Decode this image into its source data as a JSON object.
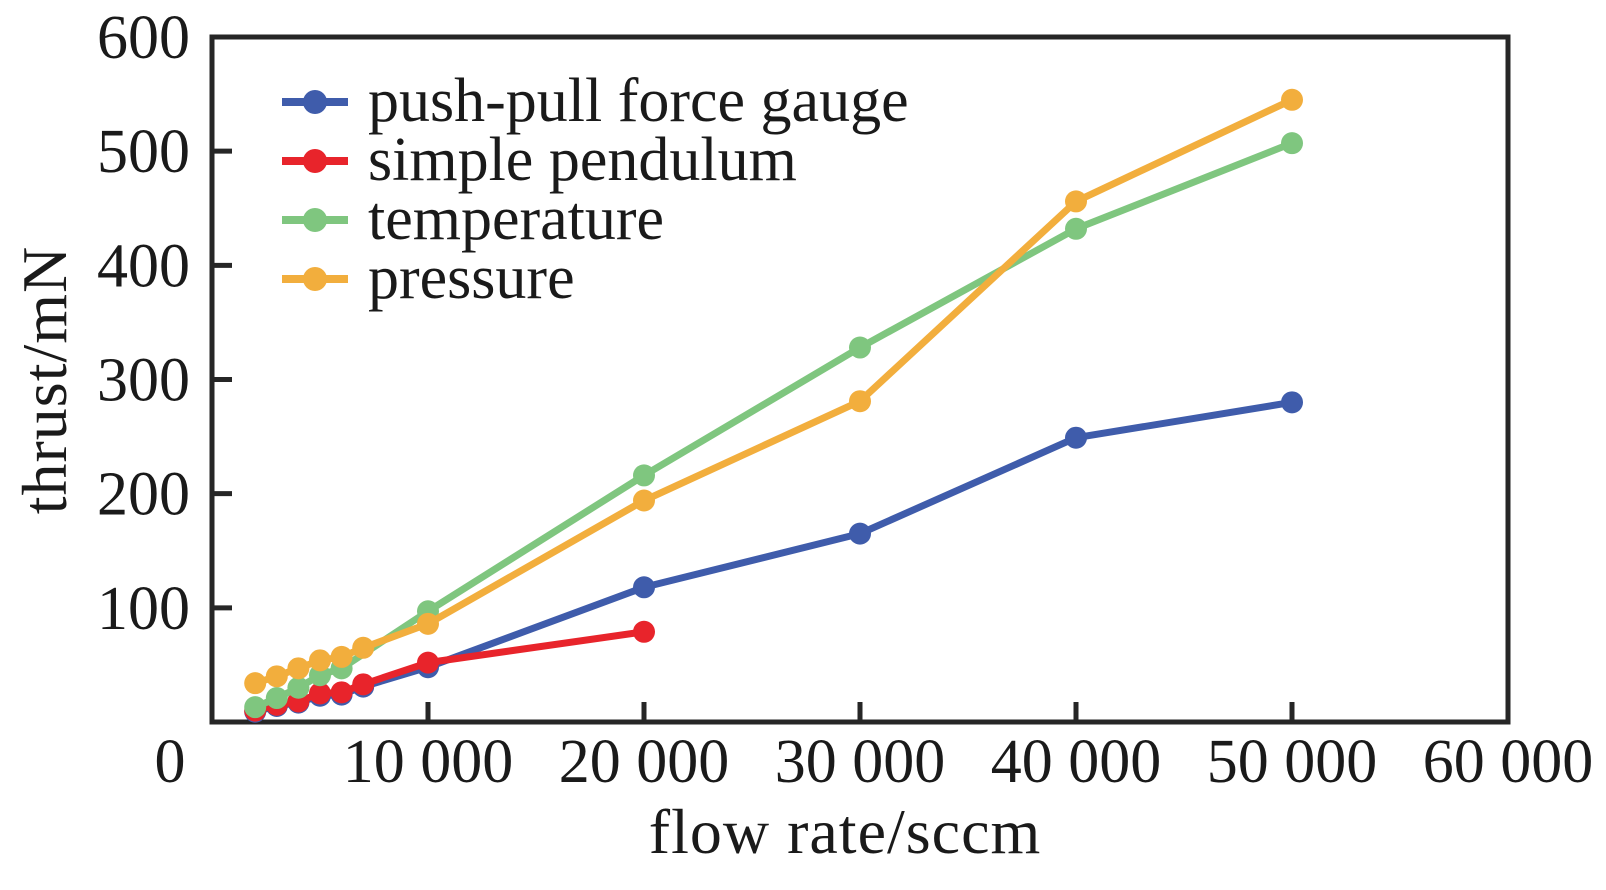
{
  "figure": {
    "background": "#ffffff",
    "axis_color": "#262626",
    "text_color": "#1a1a1a"
  },
  "chart_data": {
    "type": "line",
    "title": "",
    "xlabel": "flow rate/sccm",
    "ylabel": "thrust/mN",
    "xlim": [
      0,
      60000
    ],
    "ylim": [
      0,
      600
    ],
    "grid": false,
    "legend_position": "top-left-inside",
    "xticks": {
      "values": [
        0,
        10000,
        20000,
        30000,
        40000,
        50000,
        60000
      ],
      "labels": [
        "0",
        "10 000",
        "20 000",
        "30 000",
        "40 000",
        "50 000",
        "60 000"
      ]
    },
    "yticks": {
      "values": [
        100,
        200,
        300,
        400,
        500,
        600
      ],
      "labels": [
        "100",
        "200",
        "300",
        "400",
        "500",
        "600"
      ]
    },
    "series": [
      {
        "name": "push-pull force gauge",
        "color": "#3f5cab",
        "x": [
          2000,
          3000,
          4000,
          5000,
          6000,
          7000,
          10000,
          20000,
          30000,
          40000,
          50000
        ],
        "y": [
          9,
          14,
          17,
          23,
          24,
          31,
          48,
          118,
          165,
          249,
          280
        ]
      },
      {
        "name": "simple pendulum",
        "color": "#e8242b",
        "x": [
          2000,
          3000,
          4000,
          5000,
          6000,
          7000,
          10000,
          20000
        ],
        "y": [
          10,
          15,
          18,
          25,
          26,
          33,
          52,
          79
        ]
      },
      {
        "name": "temperature",
        "color": "#7fc67f",
        "x": [
          2000,
          3000,
          4000,
          5000,
          6000,
          10000,
          20000,
          30000,
          40000,
          50000
        ],
        "y": [
          13,
          21,
          30,
          41,
          47,
          97,
          216,
          328,
          432,
          507
        ]
      },
      {
        "name": "pressure",
        "color": "#f2ae3d",
        "x": [
          2000,
          3000,
          4000,
          5000,
          6000,
          7000,
          10000,
          20000,
          30000,
          40000,
          50000
        ],
        "y": [
          34,
          40,
          47,
          54,
          57,
          65,
          86,
          194,
          281,
          456,
          545
        ]
      }
    ]
  }
}
